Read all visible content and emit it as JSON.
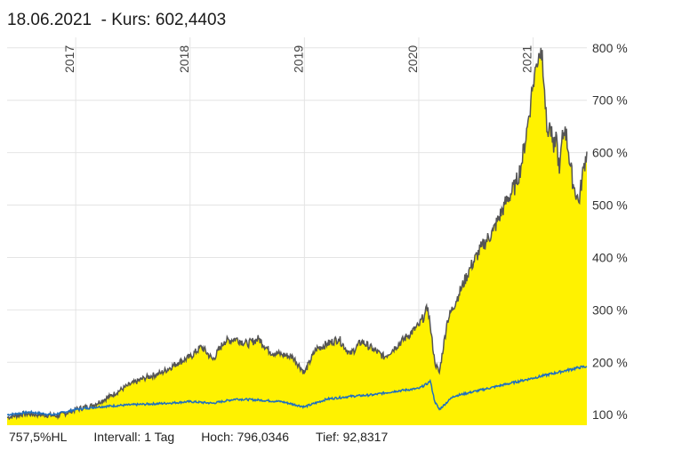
{
  "header": {
    "date": "18.06.2021",
    "kurs_label": "- Kurs:",
    "kurs_value": "602,4403"
  },
  "footer": {
    "scale": "757,5%HL",
    "interval": "Intervall: 1 Tag",
    "high": "Hoch: 796,0346",
    "low": "Tief: 92,8317"
  },
  "colors": {
    "area_fill": "#fff200",
    "main_line": "#555555",
    "benchmark_line": "#1f6fbf",
    "grid": "#e4e4e4"
  },
  "chart_data": {
    "type": "area",
    "x_unit": "year",
    "xlim": [
      2016.4,
      2021.47
    ],
    "ylim": [
      80,
      820
    ],
    "ytick_values": [
      100,
      200,
      300,
      400,
      500,
      600,
      700,
      800
    ],
    "ytick_labels": [
      "100 %",
      "200 %",
      "300 %",
      "400 %",
      "500 %",
      "600 %",
      "700 %",
      "800 %"
    ],
    "xtick_values": [
      2017,
      2018,
      2019,
      2020,
      2021
    ],
    "xtick_labels": [
      "2017",
      "2018",
      "2019",
      "2020",
      "2021"
    ],
    "series": [
      {
        "x": [
          2016.4,
          2016.55,
          2016.7,
          2016.85,
          2017.0,
          2017.15,
          2017.3,
          2017.45,
          2017.6,
          2017.75,
          2017.9,
          2018.0,
          2018.1,
          2018.2,
          2018.3,
          2018.4,
          2018.5,
          2018.6,
          2018.7,
          2018.8,
          2018.9,
          2019.0,
          2019.1,
          2019.2,
          2019.3,
          2019.4,
          2019.5,
          2019.6,
          2019.7,
          2019.8,
          2019.9,
          2020.0,
          2020.05,
          2020.08,
          2020.1,
          2020.14,
          2020.18,
          2020.25,
          2020.35,
          2020.45,
          2020.55,
          2020.65,
          2020.75,
          2020.85,
          2020.9,
          2020.95,
          2020.98,
          2021.0,
          2021.03,
          2021.05,
          2021.08,
          2021.1,
          2021.12,
          2021.15,
          2021.18,
          2021.2,
          2021.23,
          2021.25,
          2021.28,
          2021.31,
          2021.35,
          2021.4,
          2021.44,
          2021.47
        ],
        "y": [
          95,
          102,
          100,
          98,
          110,
          118,
          135,
          155,
          170,
          180,
          200,
          210,
          230,
          205,
          240,
          245,
          235,
          245,
          220,
          215,
          210,
          180,
          225,
          235,
          245,
          215,
          240,
          225,
          210,
          230,
          250,
          270,
          290,
          305,
          270,
          200,
          180,
          280,
          330,
          380,
          420,
          450,
          500,
          540,
          580,
          650,
          700,
          730,
          770,
          790,
          796,
          720,
          640,
          650,
          600,
          640,
          560,
          620,
          650,
          600,
          540,
          505,
          570,
          602
        ]
      },
      {
        "x": [
          2016.4,
          2016.6,
          2016.8,
          2017.0,
          2017.2,
          2017.4,
          2017.6,
          2017.8,
          2018.0,
          2018.2,
          2018.4,
          2018.6,
          2018.8,
          2019.0,
          2019.2,
          2019.4,
          2019.6,
          2019.8,
          2020.0,
          2020.08,
          2020.1,
          2020.14,
          2020.18,
          2020.3,
          2020.5,
          2020.7,
          2020.9,
          2021.0,
          2021.1,
          2021.2,
          2021.3,
          2021.4,
          2021.47
        ],
        "y": [
          100,
          105,
          100,
          110,
          115,
          118,
          120,
          122,
          125,
          122,
          130,
          128,
          125,
          115,
          130,
          135,
          138,
          145,
          150,
          160,
          165,
          125,
          110,
          135,
          145,
          155,
          165,
          170,
          175,
          180,
          185,
          190,
          192
        ]
      }
    ]
  }
}
